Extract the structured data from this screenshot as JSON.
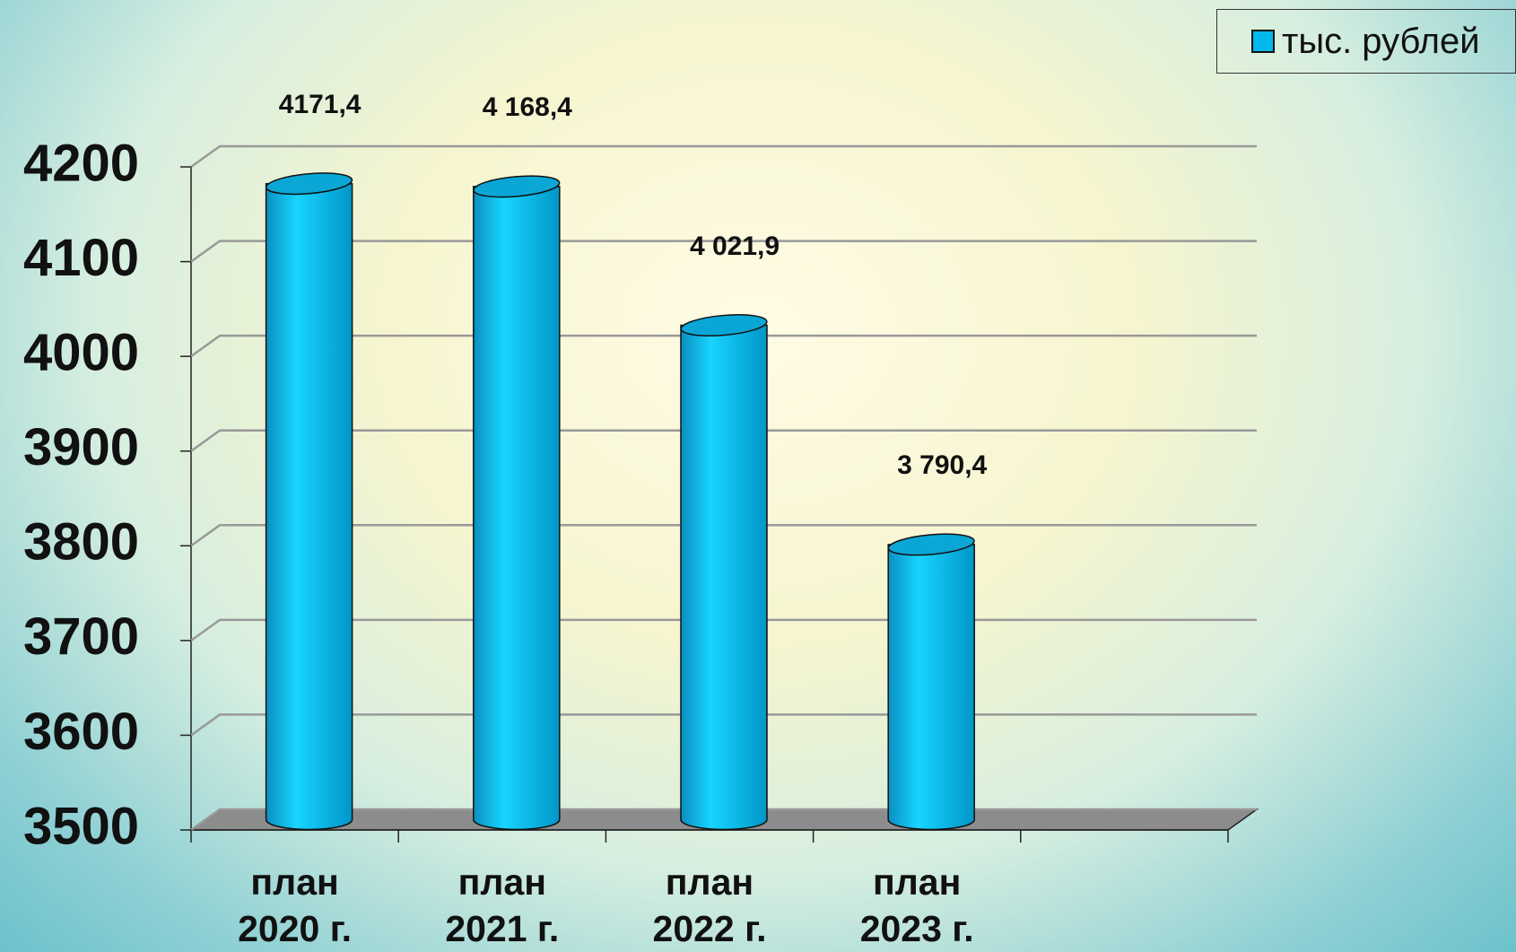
{
  "chart_data": {
    "type": "bar3d",
    "categories": [
      "план 2020 г.",
      "план 2021 г.",
      "план 2022 г.",
      "план 2023 г."
    ],
    "series": [
      {
        "name": "тыс. рублей",
        "color": "#00b8ec",
        "values": [
          4171.4,
          4168.4,
          4021.9,
          3790.4
        ],
        "value_labels": [
          "4171,4",
          "4 168,4",
          "4 021,9",
          "3 790,4"
        ]
      }
    ],
    "ylim": [
      3500,
      4200
    ],
    "yticks": [
      3500,
      3600,
      3700,
      3800,
      3900,
      4000,
      4100,
      4200
    ],
    "grid": true,
    "legend": "top-right"
  }
}
